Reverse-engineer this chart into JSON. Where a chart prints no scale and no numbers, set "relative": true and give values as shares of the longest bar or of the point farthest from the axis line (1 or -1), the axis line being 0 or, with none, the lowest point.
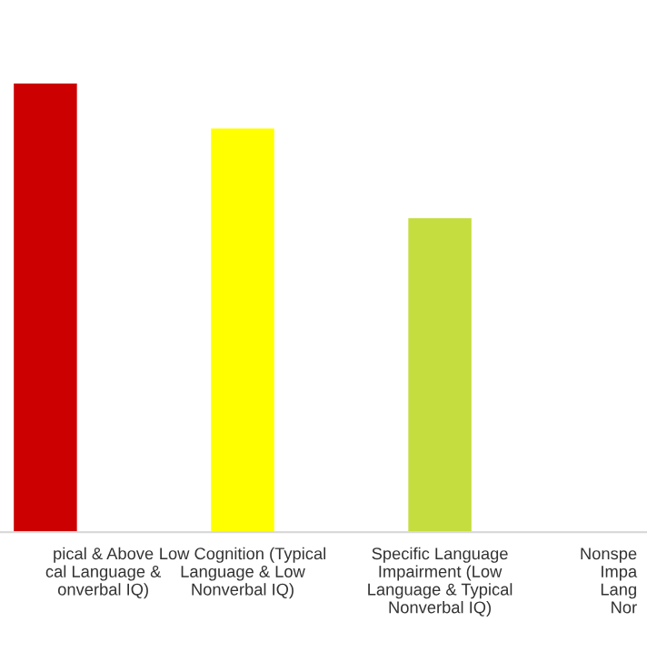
{
  "chart_data": {
    "type": "bar",
    "relative": true,
    "categories": [
      "pical & Above\ncal Language &\nonverbal IQ)",
      "Low Cognition (Typical\nLanguage & Low\nNonverbal IQ)",
      "Specific Language\nImpairment (Low\nLanguage & Typical\nNonverbal IQ)",
      "Nonspe\nImpa\nLang\nNor"
    ],
    "values": [
      1,
      0.9,
      0.7,
      null
    ],
    "colors": [
      "#cc0000",
      "#ffff00",
      "#c5dd3e",
      "#ffffff"
    ],
    "grid": false,
    "legend": false
  }
}
